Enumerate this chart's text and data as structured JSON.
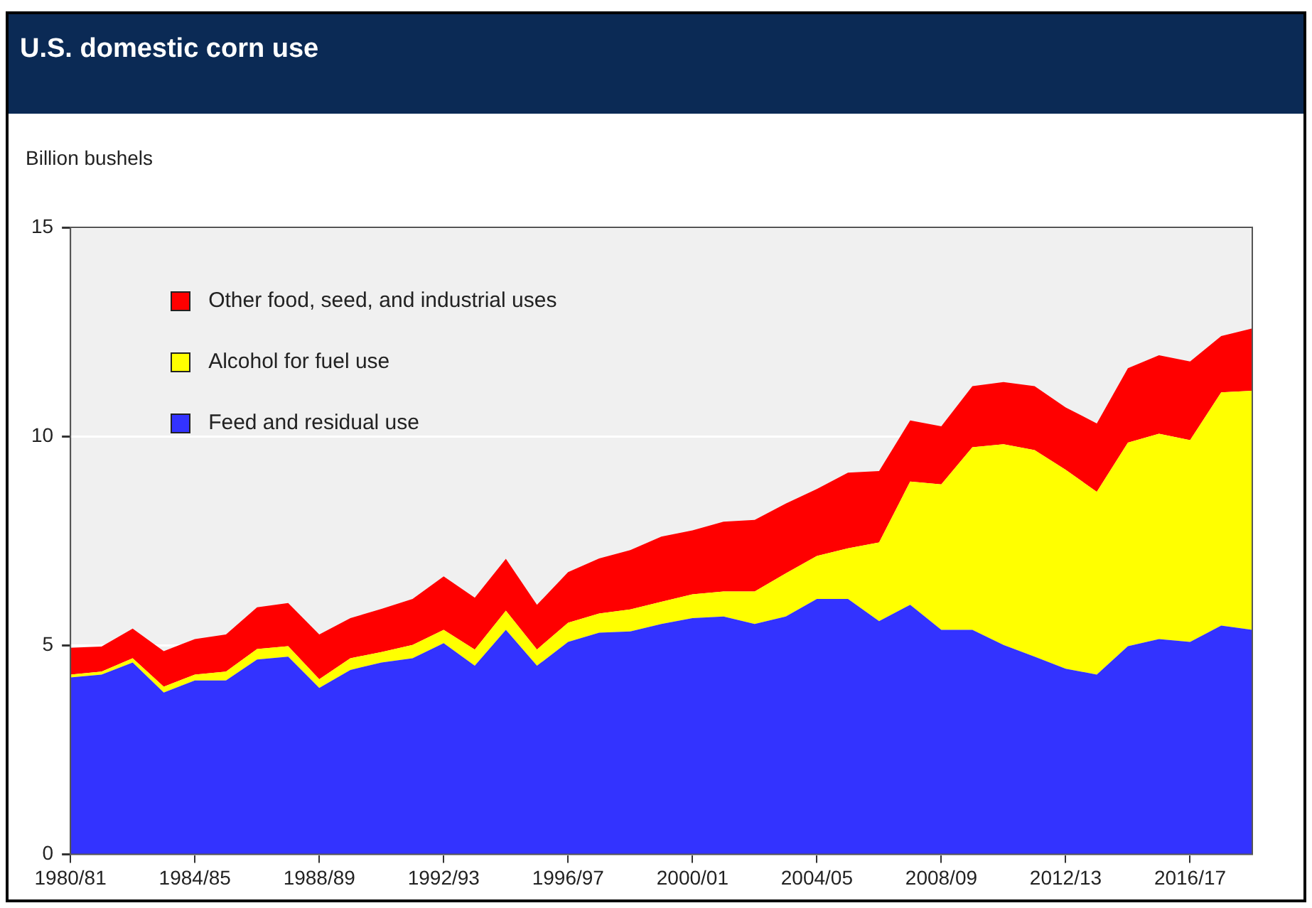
{
  "chart_data": {
    "type": "area",
    "title": "U.S. domestic corn use",
    "ylabel": "Billion bushels",
    "categories": [
      "1980/81",
      null,
      null,
      null,
      "1984/85",
      null,
      null,
      null,
      "1988/89",
      null,
      null,
      null,
      "1992/93",
      null,
      null,
      null,
      "1996/97",
      null,
      null,
      null,
      "2000/01",
      null,
      null,
      null,
      "2004/05",
      null,
      null,
      null,
      "2008/09",
      null,
      null,
      null,
      "2012/13",
      null,
      null,
      null,
      "2016/17",
      null,
      null
    ],
    "stacked": true,
    "series": [
      {
        "name": "Feed and residual use",
        "color": "#3333ff",
        "values": [
          4.23,
          4.3,
          4.59,
          3.87,
          4.16,
          4.16,
          4.66,
          4.73,
          3.98,
          4.41,
          4.59,
          4.69,
          5.05,
          4.51,
          5.37,
          4.51,
          5.08,
          5.3,
          5.33,
          5.51,
          5.65,
          5.69,
          5.51,
          5.69,
          6.11,
          6.11,
          5.58,
          5.97,
          5.37,
          5.37,
          5.01,
          4.73,
          4.44,
          4.3,
          4.98,
          5.15,
          5.08,
          5.47,
          5.37
        ]
      },
      {
        "name": "Alcohol for fuel use",
        "color": "#ffff00",
        "values": [
          0.07,
          0.07,
          0.1,
          0.14,
          0.14,
          0.21,
          0.25,
          0.25,
          0.21,
          0.28,
          0.25,
          0.32,
          0.32,
          0.39,
          0.46,
          0.39,
          0.46,
          0.46,
          0.53,
          0.53,
          0.57,
          0.6,
          0.78,
          1.03,
          1.03,
          1.21,
          1.88,
          2.95,
          3.48,
          4.37,
          4.8,
          4.94,
          4.76,
          4.37,
          4.87,
          4.91,
          4.83,
          5.58,
          5.72
        ]
      },
      {
        "name": "Other food, seed, and industrial uses",
        "color": "#ff0000",
        "values": [
          0.64,
          0.6,
          0.71,
          0.85,
          0.85,
          0.89,
          1.0,
          1.03,
          1.07,
          0.96,
          1.03,
          1.1,
          1.28,
          1.24,
          1.24,
          1.07,
          1.21,
          1.32,
          1.42,
          1.56,
          1.53,
          1.67,
          1.71,
          1.67,
          1.6,
          1.81,
          1.71,
          1.46,
          1.39,
          1.46,
          1.49,
          1.53,
          1.49,
          1.64,
          1.78,
          1.88,
          1.88,
          1.35,
          1.49
        ]
      }
    ],
    "ylim": [
      0,
      15
    ],
    "yticks": [
      0,
      5,
      10,
      15
    ],
    "grid": "y",
    "legend": "top left",
    "marker": "none"
  }
}
